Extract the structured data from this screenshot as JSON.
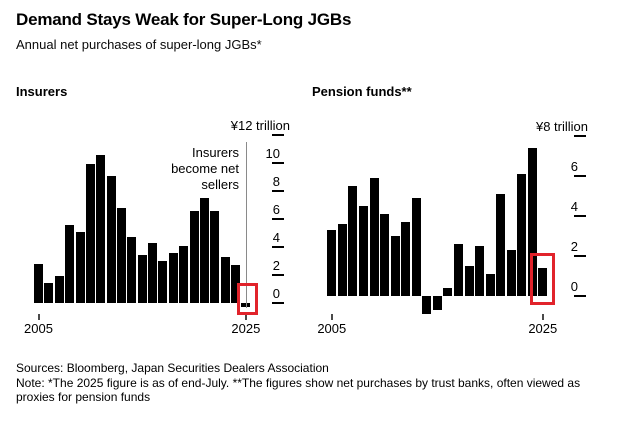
{
  "header": {
    "title": "Demand Stays Weak for Super-Long JGBs",
    "subtitle": "Annual net purchases of super-long JGBs*"
  },
  "footer": {
    "sources": "Sources: Bloomberg, Japan Securities Dealers Association",
    "note": "Note: *The 2025 figure is as of end-July. **The figures show net purchases by trust banks, often viewed as proxies for pension funds"
  },
  "colors": {
    "bar": "#000000",
    "highlight_box": "#e1232b",
    "annotation_line": "#8a8a8a",
    "text": "#000000",
    "background": "#ffffff"
  },
  "chart_data": [
    {
      "type": "bar",
      "title": "Insurers",
      "unit_label": "¥12 trillion",
      "categories": [
        2005,
        2006,
        2007,
        2008,
        2009,
        2010,
        2011,
        2012,
        2013,
        2014,
        2015,
        2016,
        2017,
        2018,
        2019,
        2020,
        2021,
        2022,
        2023,
        2024,
        2025
      ],
      "values": [
        2.8,
        1.4,
        1.9,
        5.6,
        5.1,
        9.9,
        10.6,
        9.1,
        6.8,
        4.7,
        3.4,
        4.3,
        3.0,
        3.6,
        4.1,
        6.6,
        7.5,
        6.6,
        3.3,
        2.7,
        -0.3
      ],
      "yticks": [
        12,
        10,
        8,
        6,
        4,
        2,
        0
      ],
      "ylim": [
        -0.5,
        12
      ],
      "ylabel": "trillion yen",
      "xtick_labels": [
        "2005",
        "2025"
      ],
      "grid": false,
      "legend_position": "none",
      "annotation": {
        "lines": [
          "Insurers",
          "become net",
          "sellers"
        ]
      },
      "highlight_year": 2025
    },
    {
      "type": "bar",
      "title": "Pension funds**",
      "unit_label": "¥8 trillion",
      "categories": [
        2005,
        2006,
        2007,
        2008,
        2009,
        2010,
        2011,
        2012,
        2013,
        2014,
        2015,
        2016,
        2017,
        2018,
        2019,
        2020,
        2021,
        2022,
        2023,
        2024,
        2025
      ],
      "values": [
        3.3,
        3.6,
        5.5,
        4.5,
        5.9,
        4.1,
        3.0,
        3.7,
        4.9,
        -0.9,
        -0.7,
        0.4,
        2.6,
        1.5,
        2.5,
        1.1,
        5.1,
        2.3,
        6.1,
        7.4,
        1.4
      ],
      "yticks": [
        8,
        6,
        4,
        2,
        0
      ],
      "ylim": [
        -1.2,
        8
      ],
      "ylabel": "trillion yen",
      "xtick_labels": [
        "2005",
        "2025"
      ],
      "grid": false,
      "legend_position": "none",
      "highlight_year": 2025
    }
  ]
}
